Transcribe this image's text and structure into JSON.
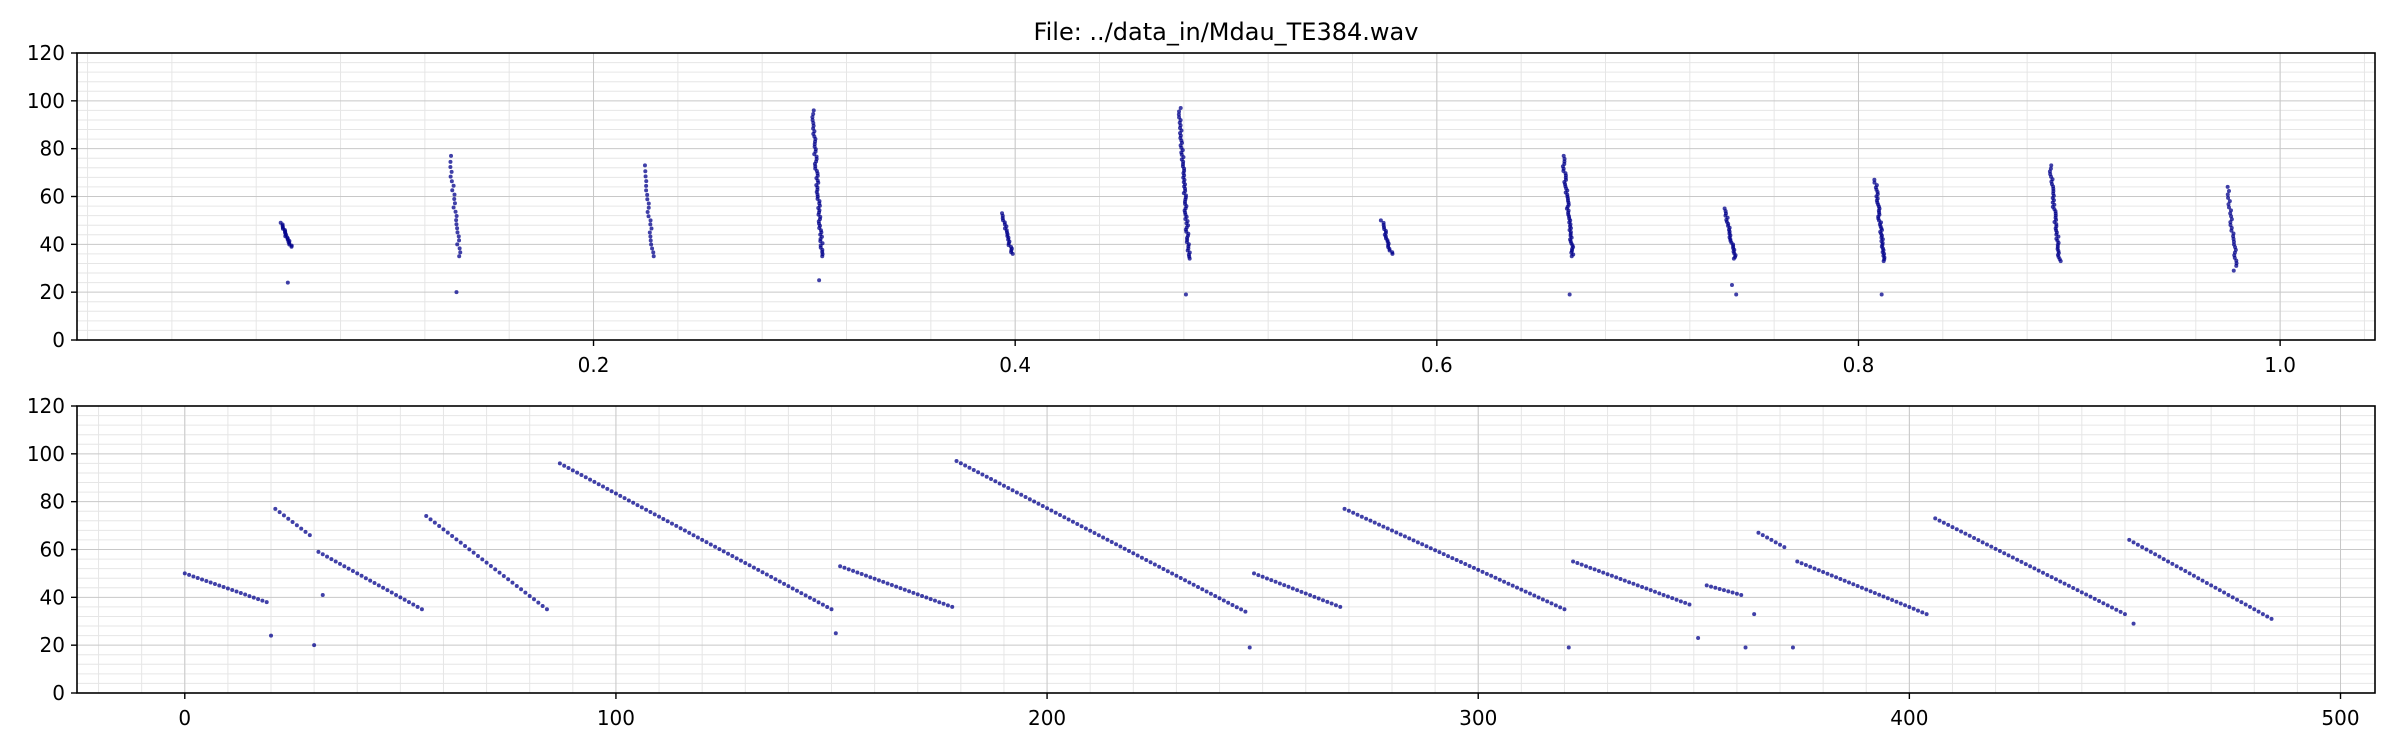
{
  "title": "File: ../data_in/Mdau_TE384.wav",
  "colors": {
    "points": "#00008b",
    "grid_major": "#c8c8c8",
    "grid_minor": "#e6e6e6",
    "axes": "#000000"
  },
  "chart_data": [
    {
      "type": "scatter",
      "panel": "top",
      "title": "File: ../data_in/Mdau_TE384.wav",
      "xlabel": "",
      "ylabel": "",
      "xlim": [
        -0.045,
        1.045
      ],
      "ylim": [
        0,
        120
      ],
      "xticks": [
        0.2,
        0.4,
        0.6,
        0.8,
        1.0
      ],
      "xtick_labels": [
        "0.2",
        "0.4",
        "0.6",
        "0.8",
        "1.0"
      ],
      "yticks": [
        0,
        20,
        40,
        60,
        80,
        100,
        120
      ],
      "ytick_labels": [
        "0",
        "20",
        "40",
        "60",
        "80",
        "100",
        "120"
      ],
      "grid": true,
      "calls": [
        {
          "t": 0.052,
          "f_max": 49,
          "f_min": 39,
          "n": 20,
          "low": [
            24
          ]
        },
        {
          "t": 0.132,
          "f_max": 77,
          "f_min": 35,
          "n": 24,
          "low": [
            20
          ]
        },
        {
          "t": 0.224,
          "f_max": 73,
          "f_min": 35,
          "n": 22,
          "low": []
        },
        {
          "t": 0.304,
          "f_max": 96,
          "f_min": 35,
          "n": 62,
          "low": [
            25
          ]
        },
        {
          "t": 0.394,
          "f_max": 53,
          "f_min": 36,
          "n": 22,
          "low": []
        },
        {
          "t": 0.478,
          "f_max": 97,
          "f_min": 34,
          "n": 67,
          "low": [
            19
          ]
        },
        {
          "t": 0.574,
          "f_max": 50,
          "f_min": 36,
          "n": 19,
          "low": []
        },
        {
          "t": 0.66,
          "f_max": 77,
          "f_min": 35,
          "n": 50,
          "low": [
            19
          ]
        },
        {
          "t": 0.737,
          "f_max": 55,
          "f_min": 34,
          "n": 27,
          "low": [
            23,
            19
          ]
        },
        {
          "t": 0.808,
          "f_max": 67,
          "f_min": 33,
          "n": 42,
          "low": [
            19
          ]
        },
        {
          "t": 0.891,
          "f_max": 73,
          "f_min": 33,
          "n": 44,
          "low": []
        },
        {
          "t": 0.975,
          "f_max": 64,
          "f_min": 31,
          "n": 28,
          "low": [
            29
          ]
        }
      ]
    },
    {
      "type": "scatter",
      "panel": "bottom",
      "xlabel": "",
      "ylabel": "",
      "xlim": [
        -25,
        508
      ],
      "ylim": [
        0,
        120
      ],
      "xticks": [
        0,
        100,
        200,
        300,
        400,
        500
      ],
      "xtick_labels": [
        "0",
        "100",
        "200",
        "300",
        "400",
        "500"
      ],
      "yticks": [
        0,
        20,
        40,
        60,
        80,
        100,
        120
      ],
      "ytick_labels": [
        "0",
        "20",
        "40",
        "60",
        "80",
        "100",
        "120"
      ],
      "grid": true,
      "segments": [
        {
          "start": 0,
          "end": 19,
          "f_start": 50,
          "f_end": 38,
          "low": [
            [
              20,
              24
            ]
          ]
        },
        {
          "start": 21,
          "end": 29,
          "f_start": 77,
          "f_end": 66,
          "low": [
            [
              30,
              20
            ]
          ]
        },
        {
          "start": 31,
          "end": 55,
          "f_start": 59,
          "f_end": 35,
          "low": [
            [
              32,
              41
            ]
          ]
        },
        {
          "start": 56,
          "end": 84,
          "f_start": 74,
          "f_end": 35,
          "low": []
        },
        {
          "start": 87,
          "end": 150,
          "f_start": 96,
          "f_end": 35,
          "low": [
            [
              151,
              25
            ]
          ]
        },
        {
          "start": 152,
          "end": 178,
          "f_start": 53,
          "f_end": 36,
          "low": []
        },
        {
          "start": 179,
          "end": 246,
          "f_start": 97,
          "f_end": 34,
          "low": [
            [
              247,
              19
            ]
          ]
        },
        {
          "start": 248,
          "end": 268,
          "f_start": 50,
          "f_end": 36,
          "low": []
        },
        {
          "start": 269,
          "end": 320,
          "f_start": 77,
          "f_end": 35,
          "low": [
            [
              321,
              19
            ]
          ]
        },
        {
          "start": 322,
          "end": 349,
          "f_start": 55,
          "f_end": 37,
          "low": [
            [
              351,
              23
            ]
          ]
        },
        {
          "start": 353,
          "end": 361,
          "f_start": 45,
          "f_end": 41,
          "low": [
            [
              362,
              19
            ],
            [
              364,
              33
            ]
          ]
        },
        {
          "start": 365,
          "end": 371,
          "f_start": 67,
          "f_end": 61,
          "low": [
            [
              373,
              19
            ]
          ]
        },
        {
          "start": 374,
          "end": 404,
          "f_start": 55,
          "f_end": 33,
          "low": []
        },
        {
          "start": 406,
          "end": 450,
          "f_start": 73,
          "f_end": 33,
          "low": []
        },
        {
          "start": 451,
          "end": 484,
          "f_start": 64,
          "f_end": 31,
          "low": [
            [
              452,
              29
            ]
          ]
        }
      ]
    }
  ]
}
